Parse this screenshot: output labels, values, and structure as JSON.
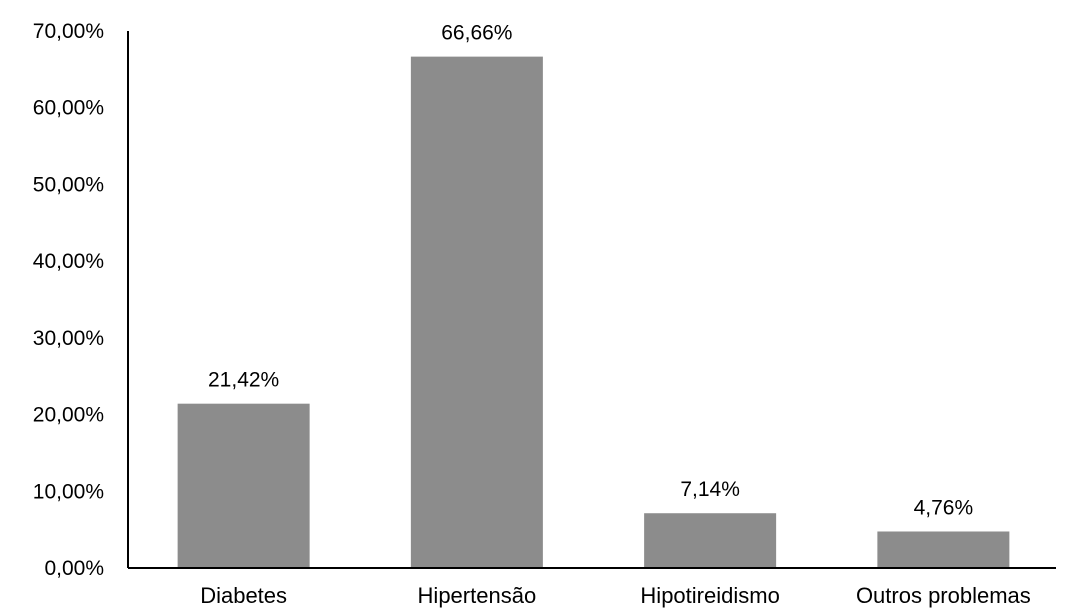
{
  "chart_data": {
    "type": "bar",
    "title": "",
    "xlabel": "",
    "ylabel": "",
    "categories": [
      "Diabetes",
      "Hipertensão",
      "Hipotireidismo",
      "Outros problemas"
    ],
    "values": [
      21.42,
      66.66,
      7.14,
      4.76
    ],
    "data_labels": [
      "21,42%",
      "66,66%",
      "7,14%",
      "4,76%"
    ],
    "ylim": [
      0,
      70
    ],
    "yticks": [
      0,
      10,
      20,
      30,
      40,
      50,
      60,
      70
    ],
    "ytick_labels": [
      "0,00%",
      "10,00%",
      "20,00%",
      "30,00%",
      "40,00%",
      "50,00%",
      "60,00%",
      "70,00%"
    ],
    "bar_color": "#8c8c8c",
    "axis_color": "#000000",
    "grid": false,
    "legend": "none"
  }
}
